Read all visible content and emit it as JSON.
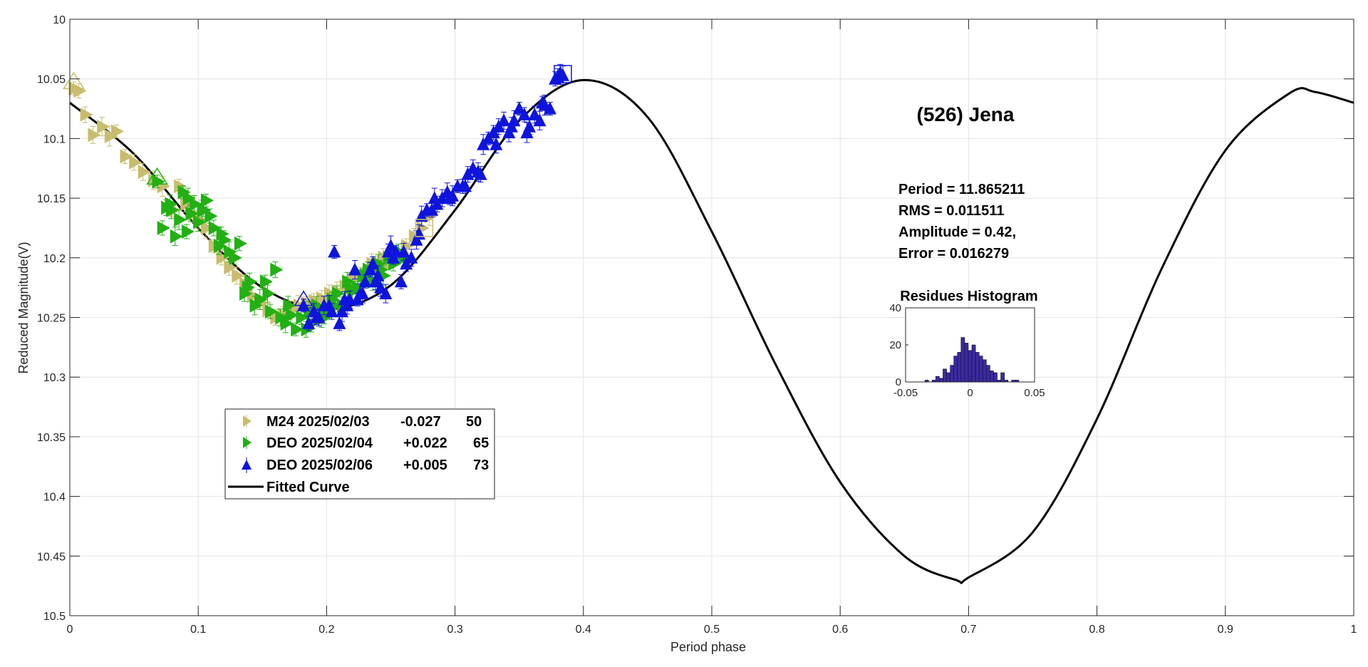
{
  "chart_data": {
    "type": "scatter",
    "title": "(526) Jena",
    "xlabel": "Period phase",
    "ylabel": "Reduced Magnitude(V)",
    "xlim": [
      0,
      1
    ],
    "ylim": [
      10,
      10.5
    ],
    "y_reversed": true,
    "grid": true,
    "x_ticks": [
      "0",
      "0.1",
      "0.2",
      "0.3",
      "0.4",
      "0.5",
      "0.6",
      "0.7",
      "0.8",
      "0.9",
      "1"
    ],
    "y_ticks": [
      "10",
      "10.05",
      "10.1",
      "10.15",
      "10.2",
      "10.25",
      "10.3",
      "10.35",
      "10.4",
      "10.45",
      "10.5"
    ],
    "stats": {
      "period": "Period =  11.865211",
      "rms": "RMS = 0.011511",
      "amplitude": "Amplitude = 0.42,",
      "error": "Error = 0.016279"
    },
    "legend": {
      "placement": "lower-left",
      "entries": [
        {
          "session": "M24 2025/02/03",
          "offset": "-0.027",
          "count": "50",
          "color": "#c8bd6e",
          "marker": "triangle-right"
        },
        {
          "session": "DEO 2025/02/04",
          "offset": "+0.022",
          "count": "65",
          "color": "#22b014",
          "marker": "triangle-right"
        },
        {
          "session": "DEO 2025/02/06",
          "offset": "+0.005",
          "count": "73",
          "color": "#0f14dc",
          "marker": "triangle-up"
        },
        {
          "session": "Fitted Curve",
          "offset": "",
          "count": "",
          "color": "#000000",
          "marker": "line"
        }
      ]
    },
    "fitted_curve": {
      "description": "Fourier fit of reduced magnitude vs phase",
      "x": [
        0,
        0.05,
        0.1,
        0.15,
        0.2,
        0.25,
        0.3,
        0.35,
        0.4,
        0.45,
        0.5,
        0.55,
        0.6,
        0.65,
        0.69,
        0.7,
        0.75,
        0.8,
        0.85,
        0.9,
        0.95,
        0.97,
        1.0
      ],
      "y": [
        10.07,
        10.113,
        10.175,
        10.225,
        10.243,
        10.223,
        10.16,
        10.085,
        10.051,
        10.082,
        10.178,
        10.29,
        10.388,
        10.45,
        10.47,
        10.468,
        10.43,
        10.335,
        10.21,
        10.11,
        10.062,
        10.061,
        10.07
      ]
    },
    "series": [
      {
        "name": "M24 2025/02/03",
        "color": "#c8bd6e",
        "marker": "triangle-right",
        "x": [
          0.003,
          0.007,
          0.012,
          0.018,
          0.025,
          0.031,
          0.036,
          0.043,
          0.05,
          0.057,
          0.065,
          0.072,
          0.08,
          0.085,
          0.09,
          0.096,
          0.1,
          0.106,
          0.112,
          0.118,
          0.124,
          0.13,
          0.136,
          0.142,
          0.148,
          0.154,
          0.16,
          0.166,
          0.172,
          0.178,
          0.184,
          0.19,
          0.196,
          0.202,
          0.208,
          0.214,
          0.22,
          0.226,
          0.232,
          0.238,
          0.244,
          0.25,
          0.256,
          0.262,
          0.268,
          0.274,
          0.28,
          0.235,
          0.245,
          0.2
        ],
        "y": [
          10.058,
          10.06,
          10.08,
          10.097,
          10.09,
          10.098,
          10.094,
          10.115,
          10.12,
          10.128,
          10.135,
          10.14,
          10.16,
          10.14,
          10.155,
          10.163,
          10.168,
          10.175,
          10.19,
          10.2,
          10.208,
          10.215,
          10.222,
          10.232,
          10.238,
          10.244,
          10.25,
          10.248,
          10.244,
          10.24,
          10.238,
          10.236,
          10.234,
          10.23,
          10.228,
          10.224,
          10.218,
          10.214,
          10.21,
          10.206,
          10.2,
          10.2,
          10.196,
          10.19,
          10.182,
          10.175,
          10.165,
          10.205,
          10.208,
          10.24
        ]
      },
      {
        "name": "DEO 2025/02/04",
        "color": "#22b014",
        "marker": "triangle-right",
        "x": [
          0.068,
          0.072,
          0.075,
          0.079,
          0.082,
          0.085,
          0.088,
          0.091,
          0.094,
          0.097,
          0.1,
          0.103,
          0.106,
          0.109,
          0.112,
          0.116,
          0.12,
          0.124,
          0.128,
          0.132,
          0.136,
          0.14,
          0.144,
          0.148,
          0.152,
          0.156,
          0.16,
          0.164,
          0.168,
          0.172,
          0.176,
          0.18,
          0.184,
          0.188,
          0.192,
          0.196,
          0.2,
          0.204,
          0.208,
          0.212,
          0.216,
          0.22,
          0.224,
          0.228,
          0.232,
          0.236,
          0.24,
          0.244,
          0.248,
          0.252,
          0.256,
          0.26,
          0.078,
          0.092,
          0.104,
          0.118,
          0.138,
          0.154,
          0.17,
          0.186,
          0.198,
          0.206,
          0.218,
          0.23,
          0.242
        ],
        "y": [
          10.136,
          10.175,
          10.158,
          10.16,
          10.182,
          10.168,
          10.145,
          10.178,
          10.163,
          10.155,
          10.17,
          10.16,
          10.152,
          10.165,
          10.175,
          10.19,
          10.185,
          10.195,
          10.2,
          10.188,
          10.23,
          10.22,
          10.24,
          10.235,
          10.22,
          10.245,
          10.21,
          10.25,
          10.255,
          10.248,
          10.26,
          10.25,
          10.26,
          10.255,
          10.24,
          10.25,
          10.245,
          10.235,
          10.23,
          10.24,
          10.22,
          10.228,
          10.225,
          10.215,
          10.21,
          10.22,
          10.205,
          10.215,
          10.2,
          10.205,
          10.195,
          10.2,
          10.155,
          10.15,
          10.16,
          10.18,
          10.225,
          10.23,
          10.24,
          10.245,
          10.25,
          10.24,
          10.225,
          10.215,
          10.21
        ]
      },
      {
        "name": "DEO 2025/02/06",
        "color": "#0f14dc",
        "marker": "triangle-up",
        "x": [
          0.182,
          0.186,
          0.19,
          0.194,
          0.198,
          0.202,
          0.206,
          0.21,
          0.214,
          0.218,
          0.222,
          0.226,
          0.23,
          0.234,
          0.238,
          0.242,
          0.246,
          0.25,
          0.254,
          0.258,
          0.262,
          0.266,
          0.27,
          0.274,
          0.278,
          0.282,
          0.286,
          0.29,
          0.294,
          0.298,
          0.302,
          0.306,
          0.31,
          0.314,
          0.318,
          0.322,
          0.326,
          0.33,
          0.334,
          0.338,
          0.342,
          0.346,
          0.35,
          0.354,
          0.358,
          0.362,
          0.366,
          0.37,
          0.374,
          0.378,
          0.38,
          0.382,
          0.384,
          0.212,
          0.224,
          0.236,
          0.248,
          0.26,
          0.272,
          0.284,
          0.296,
          0.308,
          0.32,
          0.332,
          0.344,
          0.356,
          0.368,
          0.192,
          0.204,
          0.216,
          0.228,
          0.24,
          0.252
        ],
        "y": [
          10.24,
          10.255,
          10.245,
          10.25,
          10.24,
          10.24,
          10.195,
          10.255,
          10.235,
          10.235,
          10.21,
          10.23,
          10.22,
          10.21,
          10.22,
          10.225,
          10.23,
          10.19,
          10.195,
          10.22,
          10.205,
          10.2,
          10.185,
          10.165,
          10.16,
          10.16,
          10.155,
          10.15,
          10.145,
          10.148,
          10.14,
          10.14,
          10.13,
          10.125,
          10.128,
          10.105,
          10.1,
          10.095,
          10.09,
          10.085,
          10.095,
          10.085,
          10.075,
          10.08,
          10.09,
          10.08,
          10.085,
          10.072,
          10.075,
          10.05,
          10.048,
          10.045,
          10.047,
          10.245,
          10.235,
          10.205,
          10.195,
          10.195,
          10.18,
          10.15,
          10.15,
          10.14,
          10.13,
          10.105,
          10.09,
          10.095,
          10.07,
          10.25,
          10.245,
          10.24,
          10.23,
          10.215,
          10.2
        ]
      }
    ],
    "histogram": {
      "title": "Residues Histogram",
      "xlim": [
        -0.05,
        0.05
      ],
      "ylim": [
        0,
        40
      ],
      "x_ticks": [
        "-0.05",
        "0",
        "0.05"
      ],
      "y_ticks": [
        "0",
        "20",
        "40"
      ],
      "bar_color": "#3a2aa5",
      "bin_width": 0.0028,
      "bin_centers": [
        -0.0336,
        -0.0308,
        -0.028,
        -0.0252,
        -0.0224,
        -0.0196,
        -0.0168,
        -0.014,
        -0.0112,
        -0.0084,
        -0.0056,
        -0.0028,
        0.0,
        0.0028,
        0.0056,
        0.0084,
        0.0112,
        0.014,
        0.0168,
        0.0196,
        0.0224,
        0.0252,
        0.028,
        0.0308,
        0.0336,
        0.0364,
        0.0392
      ],
      "counts": [
        1,
        0,
        1,
        3,
        2,
        7,
        5,
        9,
        14,
        16,
        24,
        21,
        17,
        20,
        16,
        14,
        12,
        9,
        6,
        5,
        1,
        5,
        1,
        0,
        1,
        1,
        0
      ]
    }
  }
}
